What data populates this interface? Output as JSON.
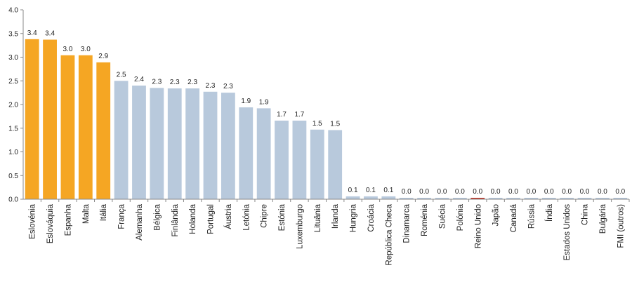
{
  "chart_data": {
    "type": "bar",
    "title": "",
    "xlabel": "",
    "ylabel": "",
    "ylim": [
      0,
      4.0
    ],
    "yticks": [
      "0.0",
      "0.5",
      "1.0",
      "1.5",
      "2.0",
      "2.5",
      "3.0",
      "3.5",
      "4.0"
    ],
    "grid": false,
    "legend": "none",
    "colors": {
      "highlight": "#F5A623",
      "default": "#B8C9DC",
      "special": "#C0392B",
      "axis": "#888888"
    },
    "categories": [
      "Eslovénia",
      "Eslováquia",
      "Espanha",
      "Malta",
      "Itália",
      "França",
      "Alemanha",
      "Bélgica",
      "Finlândia",
      "Holanda",
      "Portugal",
      "Áustria",
      "Letónia",
      "Chipre",
      "Estónia",
      "Luxemburgo",
      "Lituânia",
      "Irlanda",
      "Hungria",
      "Croácia",
      "República Checa",
      "Dinamarca",
      "Roménia",
      "Suécia",
      "Polónia",
      "Reino Unido",
      "Japão",
      "Canadá",
      "Rússia",
      "Índia",
      "Estados Unidos",
      "China",
      "Bulgária",
      "FMI (outros)"
    ],
    "values": [
      3.38,
      3.37,
      3.04,
      3.04,
      2.89,
      2.5,
      2.4,
      2.35,
      2.34,
      2.34,
      2.27,
      2.25,
      1.94,
      1.92,
      1.66,
      1.66,
      1.47,
      1.46,
      0.06,
      0.06,
      0.06,
      0.03,
      0.03,
      0.03,
      0.03,
      0.03,
      0.03,
      0.03,
      0.03,
      0.03,
      0.03,
      0.03,
      0.03,
      0.03
    ],
    "value_labels": [
      "3.4",
      "3.4",
      "3.0",
      "3.0",
      "2.9",
      "2.5",
      "2.4",
      "2.3",
      "2.3",
      "2.3",
      "2.3",
      "2.3",
      "1.9",
      "1.9",
      "1.7",
      "1.7",
      "1.5",
      "1.5",
      "0.1",
      "0.1",
      "0.1",
      "0.0",
      "0.0",
      "0.0",
      "0.0",
      "0.0",
      "0.0",
      "0.0",
      "0.0",
      "0.0",
      "0.0",
      "0.0",
      "0.0",
      "0.0"
    ],
    "bar_colors": [
      "highlight",
      "highlight",
      "highlight",
      "highlight",
      "highlight",
      "default",
      "default",
      "default",
      "default",
      "default",
      "default",
      "default",
      "default",
      "default",
      "default",
      "default",
      "default",
      "default",
      "default",
      "default",
      "default",
      "default",
      "default",
      "default",
      "default",
      "special",
      "default",
      "default",
      "default",
      "default",
      "default",
      "default",
      "default",
      "default"
    ]
  }
}
